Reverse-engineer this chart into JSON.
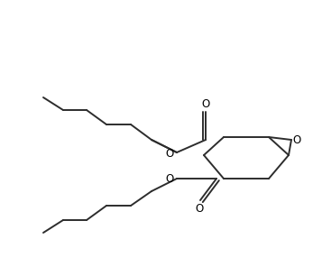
{
  "bg_color": "#ffffff",
  "line_color": "#2d2d2d",
  "line_width": 1.4,
  "figsize": [
    3.57,
    3.06
  ],
  "dpi": 100,
  "xlim": [
    0,
    357
  ],
  "ylim": [
    0,
    306
  ]
}
